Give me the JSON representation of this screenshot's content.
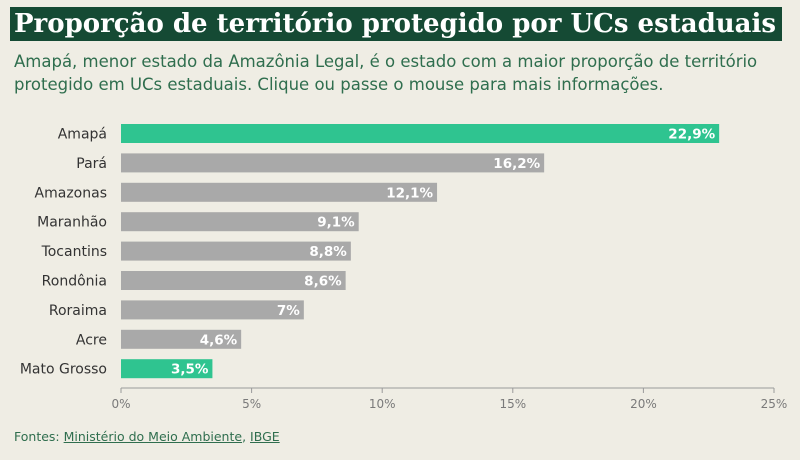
{
  "header": {
    "title": "Proporção de território protegido por UCs estaduais",
    "subtitle": "Amapá, menor estado da Amazônia Legal, é o estado com a maior proporção de território protegido em UCs estaduais. Clique ou passe o mouse para mais informações."
  },
  "chart_data": {
    "type": "bar",
    "orientation": "horizontal",
    "title": "Proporção de território protegido por UCs estaduais",
    "categories": [
      "Amapá",
      "Pará",
      "Amazonas",
      "Maranhão",
      "Tocantins",
      "Rondônia",
      "Roraima",
      "Acre",
      "Mato Grosso"
    ],
    "values": [
      22.9,
      16.2,
      12.1,
      9.1,
      8.8,
      8.6,
      7,
      4.6,
      3.5
    ],
    "value_labels": [
      "22,9%",
      "16,2%",
      "12,1%",
      "9,1%",
      "8,8%",
      "8,6%",
      "7%",
      "4,6%",
      "3,5%"
    ],
    "highlighted": [
      "Amapá",
      "Mato Grosso"
    ],
    "xlim": [
      0,
      25
    ],
    "x_ticks": [
      0,
      5,
      10,
      15,
      20,
      25
    ],
    "x_tick_labels": [
      "0%",
      "5%",
      "10%",
      "15%",
      "20%",
      "25%"
    ],
    "grid": false,
    "colors": {
      "highlight": "#2fc490",
      "default": "#a9a9a9"
    }
  },
  "footer": {
    "prefix": "Fontes: ",
    "source1": "Ministério do Meio Ambiente",
    "separator": ", ",
    "source2": "IBGE"
  },
  "colors": {
    "background": "#efede4",
    "title_bg": "#154a34",
    "subtitle_text": "#2f6e4e"
  }
}
